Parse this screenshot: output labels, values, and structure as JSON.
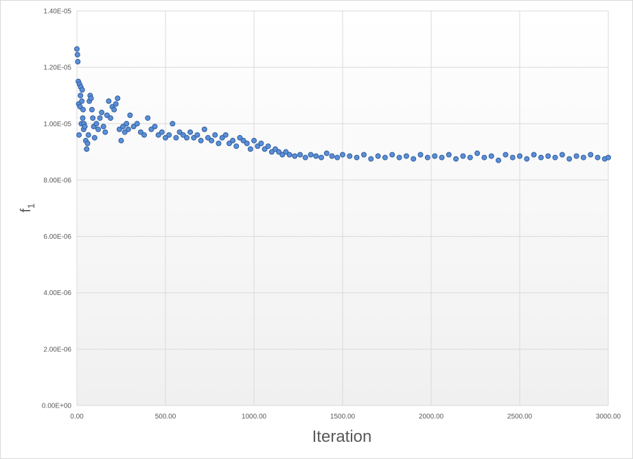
{
  "chart_data": {
    "type": "scatter",
    "title": "",
    "xlabel": "Iteration",
    "ylabel": "f",
    "ylabel_subscript": "1",
    "xlim": [
      0,
      3000
    ],
    "ylim": [
      0,
      1.4e-05
    ],
    "x_ticks": [
      0,
      500,
      1000,
      1500,
      2000,
      2500,
      3000
    ],
    "x_tick_labels": [
      "0.00",
      "500.00",
      "1000.00",
      "1500.00",
      "2000.00",
      "2500.00",
      "3000.00"
    ],
    "y_ticks": [
      0,
      2e-06,
      4e-06,
      6e-06,
      8e-06,
      1e-05,
      1.2e-05,
      1.4e-05
    ],
    "y_tick_labels": [
      "0.00E+00",
      "2.00E-06",
      "4.00E-06",
      "6.00E-06",
      "8.00E-06",
      "1.00E-05",
      "1.20E-05",
      "1.40E-05"
    ],
    "grid": true,
    "legend": "none",
    "colors": {
      "marker_fill": "#5b8fd6",
      "marker_edge": "#2e5c9e",
      "grid": "#d9d9d9",
      "plot_bg_bottom": "#f0f0f0"
    },
    "series": [
      {
        "x": [
          0,
          3,
          5,
          8,
          10,
          12,
          15,
          18,
          20,
          22,
          25,
          28,
          30,
          33,
          35,
          38,
          40,
          45,
          50,
          55,
          60,
          65,
          70,
          75,
          80,
          85,
          90,
          95,
          100,
          110,
          120,
          130,
          140,
          150,
          160,
          170,
          180,
          190,
          200,
          210,
          220,
          230,
          240,
          250,
          260,
          270,
          280,
          290,
          300,
          320,
          340,
          360,
          380,
          400,
          420,
          440,
          460,
          480,
          500,
          520,
          540,
          560,
          580,
          600,
          620,
          640,
          660,
          680,
          700,
          720,
          740,
          760,
          780,
          800,
          820,
          840,
          860,
          880,
          900,
          920,
          940,
          960,
          980,
          1000,
          1020,
          1040,
          1060,
          1080,
          1100,
          1120,
          1140,
          1160,
          1180,
          1200,
          1230,
          1260,
          1290,
          1320,
          1350,
          1380,
          1410,
          1440,
          1470,
          1500,
          1540,
          1580,
          1620,
          1660,
          1700,
          1740,
          1780,
          1820,
          1860,
          1900,
          1940,
          1980,
          2020,
          2060,
          2100,
          2140,
          2180,
          2220,
          2260,
          2300,
          2340,
          2380,
          2420,
          2460,
          2500,
          2540,
          2580,
          2620,
          2660,
          2700,
          2740,
          2780,
          2820,
          2860,
          2900,
          2940,
          2980,
          3000
        ],
        "y": [
          1.265e-05,
          1.245e-05,
          1.22e-05,
          1.15e-05,
          1.07e-05,
          9.6e-06,
          1.14e-05,
          1.06e-05,
          1.1e-05,
          1.13e-05,
          1e-05,
          1.08e-05,
          1.12e-05,
          1.02e-05,
          1.05e-05,
          9.8e-06,
          1e-05,
          9.9e-06,
          9.4e-06,
          9.1e-06,
          9.3e-06,
          9.6e-06,
          1.08e-05,
          1.1e-05,
          1.09e-05,
          1.05e-05,
          1.02e-05,
          9.9e-06,
          9.5e-06,
          1e-05,
          9.8e-06,
          1.02e-05,
          1.04e-05,
          9.9e-06,
          9.7e-06,
          1.03e-05,
          1.08e-05,
          1.02e-05,
          1.06e-05,
          1.05e-05,
          1.07e-05,
          1.09e-05,
          9.8e-06,
          9.4e-06,
          9.9e-06,
          9.7e-06,
          1e-05,
          9.8e-06,
          1.03e-05,
          9.9e-06,
          1e-05,
          9.7e-06,
          9.6e-06,
          1.02e-05,
          9.8e-06,
          9.9e-06,
          9.6e-06,
          9.7e-06,
          9.5e-06,
          9.6e-06,
          1e-05,
          9.5e-06,
          9.7e-06,
          9.6e-06,
          9.5e-06,
          9.7e-06,
          9.5e-06,
          9.6e-06,
          9.4e-06,
          9.8e-06,
          9.5e-06,
          9.4e-06,
          9.6e-06,
          9.3e-06,
          9.5e-06,
          9.6e-06,
          9.3e-06,
          9.4e-06,
          9.2e-06,
          9.5e-06,
          9.4e-06,
          9.3e-06,
          9.1e-06,
          9.4e-06,
          9.2e-06,
          9.3e-06,
          9.1e-06,
          9.2e-06,
          9e-06,
          9.1e-06,
          9e-06,
          8.9e-06,
          9e-06,
          8.9e-06,
          8.85e-06,
          8.9e-06,
          8.8e-06,
          8.9e-06,
          8.85e-06,
          8.8e-06,
          8.95e-06,
          8.85e-06,
          8.8e-06,
          8.9e-06,
          8.85e-06,
          8.8e-06,
          8.9e-06,
          8.75e-06,
          8.85e-06,
          8.8e-06,
          8.9e-06,
          8.8e-06,
          8.85e-06,
          8.75e-06,
          8.9e-06,
          8.8e-06,
          8.85e-06,
          8.8e-06,
          8.9e-06,
          8.75e-06,
          8.85e-06,
          8.8e-06,
          8.95e-06,
          8.8e-06,
          8.85e-06,
          8.7e-06,
          8.9e-06,
          8.8e-06,
          8.85e-06,
          8.75e-06,
          8.9e-06,
          8.8e-06,
          8.85e-06,
          8.8e-06,
          8.9e-06,
          8.75e-06,
          8.85e-06,
          8.8e-06,
          8.9e-06,
          8.8e-06,
          8.75e-06,
          8.8e-06
        ]
      }
    ]
  }
}
